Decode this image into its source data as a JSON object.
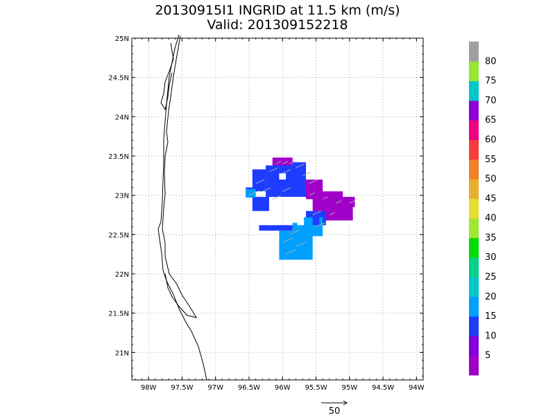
{
  "chart_data": {
    "type": "heatmap",
    "title": "20130915I1 INGRID at 11.5 km (m/s)",
    "subtitle": "Valid: 201309152218",
    "x_axis": {
      "range": [
        -98.25,
        -93.9
      ],
      "ticks": [
        -98,
        -97.5,
        -97,
        -96.5,
        -96,
        -95.5,
        -95,
        -94.5,
        -94
      ],
      "tick_labels": [
        "98W",
        "97.5W",
        "97W",
        "96.5W",
        "96W",
        "95.5W",
        "95W",
        "94.5W",
        "94W"
      ]
    },
    "y_axis": {
      "range": [
        20.65,
        25
      ],
      "ticks": [
        21,
        21.5,
        22,
        22.5,
        23,
        23.5,
        24,
        24.5,
        25
      ],
      "tick_labels": [
        "21N",
        "21.5N",
        "22N",
        "22.5N",
        "23N",
        "23.5N",
        "24N",
        "24.5N",
        "25N"
      ]
    },
    "grid": true,
    "colorbar": {
      "placement": "right",
      "labels": [
        "5",
        "10",
        "15",
        "20",
        "25",
        "30",
        "35",
        "40",
        "45",
        "50",
        "55",
        "60",
        "65",
        "70",
        "75",
        "80"
      ],
      "colors": [
        "#a000c8",
        "#8200dc",
        "#1e3cff",
        "#00a0ff",
        "#00c8c8",
        "#00d28c",
        "#00dc00",
        "#a0e632",
        "#e6dc32",
        "#e6af2d",
        "#f08228",
        "#fa3c3c",
        "#f00082",
        "#8c00d7",
        "#00c8c8",
        "#96e632",
        "#a0a0a0"
      ]
    },
    "reference_vector": {
      "label": "50",
      "units": "m/s"
    },
    "wind_cells": [
      {
        "lon": -96.1,
        "lat": 23.4,
        "speed": 3
      },
      {
        "lon": -96.0,
        "lat": 23.4,
        "speed": 4
      },
      {
        "lon": -95.9,
        "lat": 23.4,
        "speed": 4
      },
      {
        "lon": -95.8,
        "lat": 23.35,
        "speed": 12
      },
      {
        "lon": -96.2,
        "lat": 23.3,
        "speed": 12
      },
      {
        "lon": -96.0,
        "lat": 23.28,
        "speed": 12
      },
      {
        "lon": -95.7,
        "lat": 23.25,
        "speed": 12
      },
      {
        "lon": -96.4,
        "lat": 23.15,
        "speed": 12
      },
      {
        "lon": -95.6,
        "lat": 23.15,
        "speed": 12
      },
      {
        "lon": -96.3,
        "lat": 23.05,
        "speed": 12
      },
      {
        "lon": -96.0,
        "lat": 23.05,
        "speed": 12
      },
      {
        "lon": -95.6,
        "lat": 23.0,
        "speed": 4
      },
      {
        "lon": -95.4,
        "lat": 22.95,
        "speed": 3
      },
      {
        "lon": -95.2,
        "lat": 22.9,
        "speed": 3
      },
      {
        "lon": -95.0,
        "lat": 22.9,
        "speed": 3
      },
      {
        "lon": -96.5,
        "lat": 23.0,
        "speed": 18
      },
      {
        "lon": -96.15,
        "lat": 22.95,
        "speed": 12
      },
      {
        "lon": -95.55,
        "lat": 22.75,
        "speed": 12
      },
      {
        "lon": -95.3,
        "lat": 22.75,
        "speed": 3
      },
      {
        "lon": -95.9,
        "lat": 22.5,
        "speed": 18
      },
      {
        "lon": -96.0,
        "lat": 22.4,
        "speed": 18
      },
      {
        "lon": -95.8,
        "lat": 22.35,
        "speed": 18
      },
      {
        "lon": -95.95,
        "lat": 22.25,
        "speed": 18
      },
      {
        "lon": -95.5,
        "lat": 22.6,
        "speed": 18
      }
    ]
  }
}
